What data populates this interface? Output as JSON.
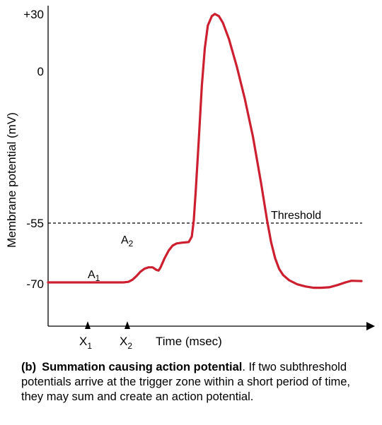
{
  "chart_data": {
    "type": "line",
    "title": "",
    "xlabel": "Time (msec)",
    "ylabel": "Membrane potential (mV)",
    "y_ticks": [
      {
        "value": 30,
        "label": "+30"
      },
      {
        "value": 0,
        "label": "0"
      },
      {
        "value": -55,
        "label": "-55"
      },
      {
        "value": -70,
        "label": "-70"
      }
    ],
    "ylim": [
      -73,
      31
    ],
    "x_ticks": [
      {
        "label": "X",
        "sub": "1"
      },
      {
        "label": "X",
        "sub": "2"
      }
    ],
    "threshold": {
      "value": -55,
      "label": "Threshold"
    },
    "annotations": [
      {
        "label": "A",
        "sub": "1"
      },
      {
        "label": "A",
        "sub": "2"
      }
    ],
    "series": [
      {
        "color": "#cc1f2f",
        "points": [
          [
            0,
            -70
          ],
          [
            75,
            -70
          ],
          [
            80,
            -69.8
          ],
          [
            84,
            -69
          ],
          [
            88,
            -67.6
          ],
          [
            92,
            -66
          ],
          [
            96,
            -64.9
          ],
          [
            100,
            -64.4
          ],
          [
            104,
            -64.4
          ],
          [
            108,
            -65.4
          ],
          [
            110,
            -65.6
          ],
          [
            112,
            -64.4
          ],
          [
            116,
            -61
          ],
          [
            120,
            -58.2
          ],
          [
            124,
            -56.3
          ],
          [
            128,
            -55.5
          ],
          [
            134,
            -55.2
          ],
          [
            140,
            -55
          ],
          [
            143,
            -53
          ],
          [
            145,
            -47
          ],
          [
            147,
            -36
          ],
          [
            150,
            -17
          ],
          [
            153,
            3
          ],
          [
            156,
            17
          ],
          [
            159,
            25.5
          ],
          [
            163,
            29
          ],
          [
            166,
            29.8
          ],
          [
            170,
            29
          ],
          [
            174,
            26.5
          ],
          [
            180,
            20.5
          ],
          [
            188,
            10
          ],
          [
            196,
            -2
          ],
          [
            204,
            -16
          ],
          [
            212,
            -33
          ],
          [
            218,
            -47
          ],
          [
            222,
            -55
          ],
          [
            226,
            -61
          ],
          [
            230,
            -65
          ],
          [
            234,
            -67.3
          ],
          [
            240,
            -69.2
          ],
          [
            248,
            -70.7
          ],
          [
            256,
            -71.5
          ],
          [
            264,
            -72
          ],
          [
            272,
            -72
          ],
          [
            280,
            -71.8
          ],
          [
            288,
            -71
          ],
          [
            296,
            -70
          ],
          [
            302,
            -69.4
          ],
          [
            312,
            -69.5
          ]
        ]
      }
    ]
  },
  "caption": {
    "tag": "(b)",
    "title": "Summation causing action potential",
    "body": ". If two subthreshold potentials arrive at the trigger zone within a short period of time, they may sum and create an action potential."
  }
}
